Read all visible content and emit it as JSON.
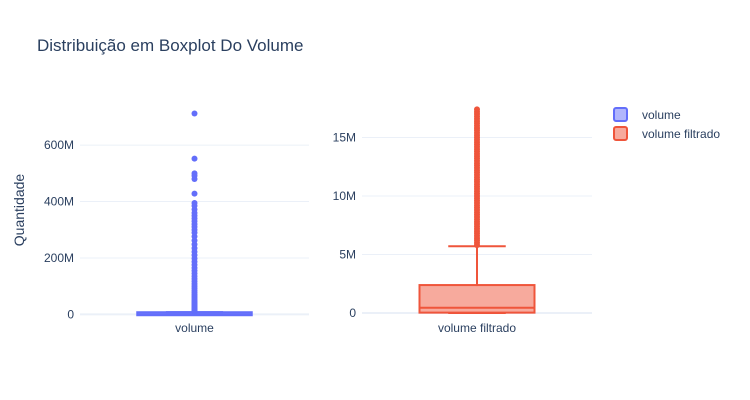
{
  "chart_data": {
    "type": "box",
    "title": "Distribuição em Boxplot Do Volume",
    "ylabel": "Quantidade",
    "legend_placement": "top-right",
    "grid": true,
    "subplots": [
      {
        "name": "volume",
        "category_label": "volume",
        "color": "#636efa",
        "ylim": [
          -20000000,
          760000000
        ],
        "yticks": [
          {
            "value": 0,
            "label": "0"
          },
          {
            "value": 200000000,
            "label": "200M"
          },
          {
            "value": 400000000,
            "label": "400M"
          },
          {
            "value": 600000000,
            "label": "600M"
          }
        ],
        "box": {
          "min": 0,
          "q1": 300000,
          "median": 1000000,
          "q3": 4000000,
          "upper_fence": 8000000
        },
        "outliers": [
          8500000,
          10000000,
          12000000,
          14000000,
          16000000,
          18000000,
          20000000,
          23000000,
          26000000,
          30000000,
          34000000,
          38000000,
          42000000,
          47000000,
          52000000,
          58000000,
          64000000,
          70000000,
          77000000,
          84000000,
          92000000,
          100000000,
          108000000,
          117000000,
          126000000,
          135000000,
          145000000,
          155000000,
          165000000,
          176000000,
          187000000,
          198000000,
          210000000,
          222000000,
          235000000,
          248000000,
          262000000,
          276000000,
          290000000,
          300000000,
          310000000,
          320000000,
          330000000,
          340000000,
          350000000,
          360000000,
          372000000,
          385000000,
          395000000,
          428000000,
          480000000,
          492000000,
          500000000,
          552000000,
          712000000
        ]
      },
      {
        "name": "volume filtrado",
        "category_label": "volume filtrado",
        "color": "#ef553b",
        "ylim": [
          -600000,
          18200000
        ],
        "yticks": [
          {
            "value": 0,
            "label": "0"
          },
          {
            "value": 5000000,
            "label": "5M"
          },
          {
            "value": 10000000,
            "label": "10M"
          },
          {
            "value": 15000000,
            "label": "15M"
          }
        ],
        "box": {
          "min": 0,
          "q1": 30000,
          "median": 450000,
          "q3": 2300000,
          "upper_fence": 5700000
        },
        "outliers": [
          5800000,
          6000000,
          6200000,
          6400000,
          6600000,
          6800000,
          7000000,
          7200000,
          7400000,
          7600000,
          7800000,
          8000000,
          8200000,
          8400000,
          8600000,
          8800000,
          9000000,
          9200000,
          9400000,
          9600000,
          9800000,
          10000000,
          10200000,
          10400000,
          10600000,
          10800000,
          11000000,
          11200000,
          11400000,
          11600000,
          11800000,
          12000000,
          12200000,
          12400000,
          12600000,
          12800000,
          13000000,
          13200000,
          13400000,
          13600000,
          13800000,
          14000000,
          14200000,
          14400000,
          14600000,
          14800000,
          15000000,
          15200000,
          15400000,
          15600000,
          15800000,
          16000000,
          16200000,
          16400000,
          16600000,
          16800000,
          17000000,
          17200000,
          17400000
        ]
      }
    ],
    "legend": [
      {
        "label": "volume",
        "color": "#636efa"
      },
      {
        "label": "volume filtrado",
        "color": "#ef553b"
      }
    ]
  }
}
